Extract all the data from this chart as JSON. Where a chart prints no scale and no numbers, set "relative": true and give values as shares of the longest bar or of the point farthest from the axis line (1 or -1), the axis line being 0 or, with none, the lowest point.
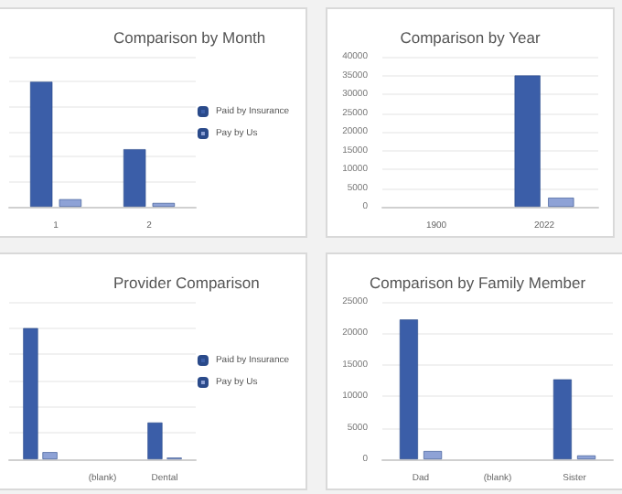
{
  "chart_data": [
    {
      "type": "bar",
      "title": "Comparison by Month",
      "categories": [
        "1",
        "2"
      ],
      "relative": true,
      "grid": "y",
      "legend": "right",
      "series": [
        {
          "name": "Paid by Insurance",
          "color": "#3b5ea8",
          "values": [
            1,
            0.46
          ]
        },
        {
          "name": "Pay by Us",
          "color": "#8ea2d6",
          "values": [
            0.06,
            0.03
          ]
        }
      ]
    },
    {
      "type": "bar",
      "title": "Comparison by Year",
      "categories": [
        "1900",
        "2022"
      ],
      "ylim": [
        0,
        40000
      ],
      "yticks": [
        0,
        5000,
        10000,
        15000,
        20000,
        25000,
        30000,
        35000,
        40000
      ],
      "grid": "y",
      "series": [
        {
          "color": "#3b5ea8",
          "values": [
            null,
            35000
          ]
        },
        {
          "color": "#8ea2d6",
          "values": [
            null,
            2400
          ]
        }
      ]
    },
    {
      "type": "bar",
      "title": "Provider Comparison",
      "categories": [
        null,
        "(blank)",
        "Dental"
      ],
      "relative": true,
      "grid": "y",
      "legend": "right",
      "series": [
        {
          "name": "Paid by Insurance",
          "color": "#3b5ea8",
          "values": [
            1,
            null,
            0.28
          ]
        },
        {
          "name": "Pay by Us",
          "color": "#8ea2d6",
          "values": [
            0.054,
            null,
            0.0125
          ]
        }
      ]
    },
    {
      "type": "bar",
      "title": "Comparison by Family Member",
      "categories": [
        "Dad",
        "(blank)",
        "Sister"
      ],
      "ylim": [
        0,
        25000
      ],
      "yticks": [
        0,
        5000,
        10000,
        15000,
        20000,
        25000
      ],
      "grid": "y",
      "series": [
        {
          "color": "#3b5ea8",
          "values": [
            22200,
            null,
            12700
          ]
        },
        {
          "color": "#8ea2d6",
          "values": [
            1300,
            null,
            600
          ]
        }
      ]
    }
  ]
}
